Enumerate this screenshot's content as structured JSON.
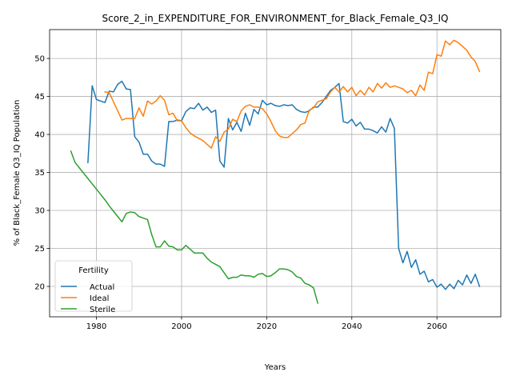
{
  "chart_data": {
    "type": "line",
    "title": "Score_2_in_EXPENDITURE_FOR_ENVIRONMENT_for_Black_Female_Q3_IQ",
    "xlabel": "Years",
    "ylabel": "% of Black_Female Q3_IQ Population",
    "xlim": [
      1969,
      2075
    ],
    "ylim": [
      16.0,
      53.8
    ],
    "xticks": [
      1980,
      2000,
      2020,
      2040,
      2060
    ],
    "yticks": [
      20,
      25,
      30,
      35,
      40,
      45,
      50
    ],
    "grid": true,
    "legend": {
      "title": "Fertility",
      "placement": "lower-left"
    },
    "series": [
      {
        "name": "Actual",
        "color": "#1f77b4",
        "points": [
          [
            1978,
            36.3
          ],
          [
            1979,
            46.4
          ],
          [
            1980,
            44.6
          ],
          [
            1981,
            44.4
          ],
          [
            1982,
            44.2
          ],
          [
            1983,
            45.7
          ],
          [
            1984,
            45.6
          ],
          [
            1985,
            46.6
          ],
          [
            1986,
            47.0
          ],
          [
            1987,
            46.0
          ],
          [
            1988,
            45.9
          ],
          [
            1989,
            39.7
          ],
          [
            1990,
            39.0
          ],
          [
            1991,
            37.4
          ],
          [
            1992,
            37.4
          ],
          [
            1993,
            36.5
          ],
          [
            1994,
            36.1
          ],
          [
            1995,
            36.1
          ],
          [
            1996,
            35.8
          ],
          [
            1997,
            41.7
          ],
          [
            1998,
            41.7
          ],
          [
            1999,
            41.9
          ],
          [
            2000,
            41.8
          ],
          [
            2001,
            43.0
          ],
          [
            2002,
            43.5
          ],
          [
            2003,
            43.4
          ],
          [
            2004,
            44.1
          ],
          [
            2005,
            43.2
          ],
          [
            2006,
            43.6
          ],
          [
            2007,
            42.9
          ],
          [
            2008,
            43.2
          ],
          [
            2009,
            36.5
          ],
          [
            2010,
            35.7
          ],
          [
            2011,
            42.1
          ],
          [
            2012,
            40.6
          ],
          [
            2013,
            41.6
          ],
          [
            2014,
            40.4
          ],
          [
            2015,
            42.8
          ],
          [
            2016,
            41.2
          ],
          [
            2017,
            43.3
          ],
          [
            2018,
            42.7
          ],
          [
            2019,
            44.5
          ],
          [
            2020,
            43.9
          ],
          [
            2021,
            44.1
          ],
          [
            2022,
            43.8
          ],
          [
            2023,
            43.7
          ],
          [
            2024,
            43.9
          ],
          [
            2025,
            43.8
          ],
          [
            2026,
            43.9
          ],
          [
            2027,
            43.3
          ],
          [
            2028,
            43.0
          ],
          [
            2029,
            42.9
          ],
          [
            2030,
            43.1
          ],
          [
            2031,
            43.6
          ],
          [
            2032,
            43.6
          ],
          [
            2033,
            44.2
          ],
          [
            2034,
            45.0
          ],
          [
            2035,
            45.8
          ],
          [
            2036,
            46.2
          ],
          [
            2037,
            46.7
          ],
          [
            2038,
            41.7
          ],
          [
            2039,
            41.5
          ],
          [
            2040,
            42.0
          ],
          [
            2041,
            41.1
          ],
          [
            2042,
            41.6
          ],
          [
            2043,
            40.7
          ],
          [
            2044,
            40.7
          ],
          [
            2045,
            40.5
          ],
          [
            2046,
            40.2
          ],
          [
            2047,
            41.0
          ],
          [
            2048,
            40.3
          ],
          [
            2049,
            42.1
          ],
          [
            2050,
            40.8
          ],
          [
            2051,
            25.0
          ],
          [
            2052,
            23.1
          ],
          [
            2053,
            24.6
          ],
          [
            2054,
            22.5
          ],
          [
            2055,
            23.5
          ],
          [
            2056,
            21.6
          ],
          [
            2057,
            22.0
          ],
          [
            2058,
            20.6
          ],
          [
            2059,
            20.9
          ],
          [
            2060,
            19.9
          ],
          [
            2061,
            20.3
          ],
          [
            2062,
            19.6
          ],
          [
            2063,
            20.3
          ],
          [
            2064,
            19.7
          ],
          [
            2065,
            20.8
          ],
          [
            2066,
            20.2
          ],
          [
            2067,
            21.5
          ],
          [
            2068,
            20.4
          ],
          [
            2069,
            21.6
          ],
          [
            2070,
            20.0
          ]
        ]
      },
      {
        "name": "Ideal",
        "color": "#ff7f0e",
        "points": [
          [
            1982,
            45.6
          ],
          [
            1983,
            45.5
          ],
          [
            1984,
            44.3
          ],
          [
            1985,
            43.1
          ],
          [
            1986,
            41.9
          ],
          [
            1987,
            42.1
          ],
          [
            1988,
            42.1
          ],
          [
            1989,
            42.1
          ],
          [
            1990,
            43.5
          ],
          [
            1991,
            42.4
          ],
          [
            1992,
            44.4
          ],
          [
            1993,
            44.0
          ],
          [
            1994,
            44.4
          ],
          [
            1995,
            45.1
          ],
          [
            1996,
            44.5
          ],
          [
            1997,
            42.6
          ],
          [
            1998,
            42.8
          ],
          [
            1999,
            41.8
          ],
          [
            2000,
            41.8
          ],
          [
            2001,
            40.9
          ],
          [
            2002,
            40.2
          ],
          [
            2003,
            39.8
          ],
          [
            2004,
            39.5
          ],
          [
            2005,
            39.2
          ],
          [
            2006,
            38.7
          ],
          [
            2007,
            38.2
          ],
          [
            2008,
            39.7
          ],
          [
            2009,
            39.1
          ],
          [
            2010,
            40.3
          ],
          [
            2011,
            40.7
          ],
          [
            2012,
            42.0
          ],
          [
            2013,
            41.7
          ],
          [
            2014,
            43.1
          ],
          [
            2015,
            43.7
          ],
          [
            2016,
            43.9
          ],
          [
            2017,
            43.6
          ],
          [
            2018,
            43.6
          ],
          [
            2019,
            43.4
          ],
          [
            2020,
            42.7
          ],
          [
            2021,
            41.7
          ],
          [
            2022,
            40.5
          ],
          [
            2023,
            39.8
          ],
          [
            2024,
            39.6
          ],
          [
            2025,
            39.6
          ],
          [
            2026,
            40.1
          ],
          [
            2027,
            40.6
          ],
          [
            2028,
            41.3
          ],
          [
            2029,
            41.5
          ],
          [
            2030,
            43.2
          ],
          [
            2031,
            43.5
          ],
          [
            2032,
            44.3
          ],
          [
            2033,
            44.5
          ],
          [
            2034,
            44.7
          ],
          [
            2035,
            45.6
          ],
          [
            2036,
            46.2
          ],
          [
            2037,
            45.6
          ],
          [
            2038,
            46.3
          ],
          [
            2039,
            45.6
          ],
          [
            2040,
            46.2
          ],
          [
            2041,
            45.1
          ],
          [
            2042,
            45.8
          ],
          [
            2043,
            45.2
          ],
          [
            2044,
            46.2
          ],
          [
            2045,
            45.6
          ],
          [
            2046,
            46.7
          ],
          [
            2047,
            46.1
          ],
          [
            2048,
            46.8
          ],
          [
            2049,
            46.2
          ],
          [
            2050,
            46.4
          ],
          [
            2051,
            46.2
          ],
          [
            2052,
            46.0
          ],
          [
            2053,
            45.5
          ],
          [
            2054,
            45.8
          ],
          [
            2055,
            45.1
          ],
          [
            2056,
            46.5
          ],
          [
            2057,
            45.8
          ],
          [
            2058,
            48.2
          ],
          [
            2059,
            48.0
          ],
          [
            2060,
            50.5
          ],
          [
            2061,
            50.3
          ],
          [
            2062,
            52.3
          ],
          [
            2063,
            51.8
          ],
          [
            2064,
            52.4
          ],
          [
            2065,
            52.1
          ],
          [
            2066,
            51.6
          ],
          [
            2067,
            51.1
          ],
          [
            2068,
            50.2
          ],
          [
            2069,
            49.6
          ],
          [
            2070,
            48.3
          ]
        ]
      },
      {
        "name": "Sterile",
        "color": "#2ca02c",
        "points": [
          [
            1974,
            37.8
          ],
          [
            1975,
            36.3
          ],
          [
            1976,
            35.6
          ],
          [
            1977,
            34.9
          ],
          [
            1978,
            34.2
          ],
          [
            1979,
            33.5
          ],
          [
            1980,
            32.8
          ],
          [
            1981,
            32.1
          ],
          [
            1982,
            31.4
          ],
          [
            1983,
            30.6
          ],
          [
            1984,
            29.9
          ],
          [
            1985,
            29.2
          ],
          [
            1986,
            28.5
          ],
          [
            1987,
            29.6
          ],
          [
            1988,
            29.8
          ],
          [
            1989,
            29.7
          ],
          [
            1990,
            29.2
          ],
          [
            1991,
            29.0
          ],
          [
            1992,
            28.8
          ],
          [
            1993,
            26.8
          ],
          [
            1994,
            25.2
          ],
          [
            1995,
            25.2
          ],
          [
            1996,
            26.0
          ],
          [
            1997,
            25.3
          ],
          [
            1998,
            25.2
          ],
          [
            1999,
            24.8
          ],
          [
            2000,
            24.8
          ],
          [
            2001,
            25.4
          ],
          [
            2002,
            24.9
          ],
          [
            2003,
            24.4
          ],
          [
            2004,
            24.4
          ],
          [
            2005,
            24.4
          ],
          [
            2006,
            23.7
          ],
          [
            2007,
            23.2
          ],
          [
            2008,
            22.9
          ],
          [
            2009,
            22.6
          ],
          [
            2010,
            21.8
          ],
          [
            2011,
            21.0
          ],
          [
            2012,
            21.2
          ],
          [
            2013,
            21.2
          ],
          [
            2014,
            21.5
          ],
          [
            2015,
            21.4
          ],
          [
            2016,
            21.4
          ],
          [
            2017,
            21.2
          ],
          [
            2018,
            21.6
          ],
          [
            2019,
            21.7
          ],
          [
            2020,
            21.3
          ],
          [
            2021,
            21.4
          ],
          [
            2022,
            21.8
          ],
          [
            2023,
            22.3
          ],
          [
            2024,
            22.3
          ],
          [
            2025,
            22.2
          ],
          [
            2026,
            21.9
          ],
          [
            2027,
            21.3
          ],
          [
            2028,
            21.1
          ],
          [
            2029,
            20.4
          ],
          [
            2030,
            20.2
          ],
          [
            2031,
            19.8
          ],
          [
            2032,
            17.8
          ]
        ]
      }
    ]
  }
}
